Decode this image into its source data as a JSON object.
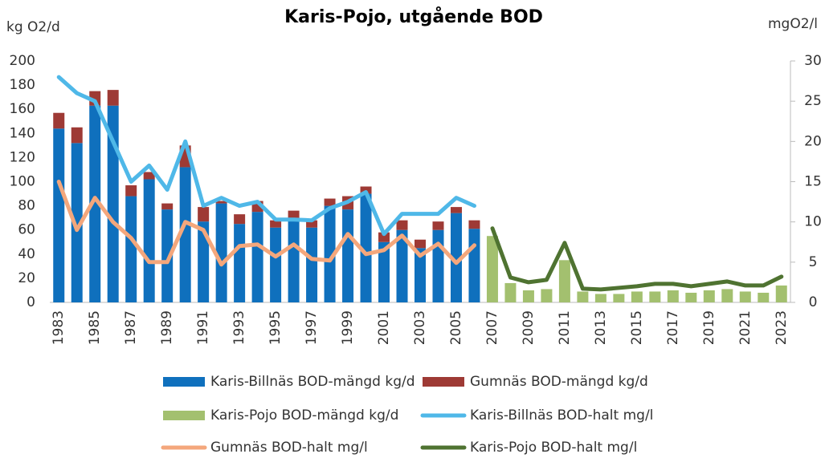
{
  "chart_data": {
    "type": "bar",
    "title": "Karis-Pojo, utgående BOD",
    "y_label": "kg O2/d",
    "y2_label": "mgO2/l",
    "categories": [
      "1983",
      null,
      "1985",
      null,
      "1987",
      null,
      "1989",
      null,
      "1991",
      null,
      "1993",
      null,
      "1995",
      null,
      "1997",
      null,
      "1999",
      null,
      "2001",
      null,
      "2003",
      null,
      "2005",
      null,
      "2007",
      null,
      "2009",
      null,
      "2011",
      null,
      "2013",
      null,
      "2015",
      null,
      "2017",
      null,
      "2019",
      null,
      "2021",
      null,
      "2023"
    ],
    "ylim": [
      0,
      200
    ],
    "yticks": [
      0,
      20,
      40,
      60,
      80,
      100,
      120,
      140,
      160,
      180,
      200
    ],
    "y2lim": [
      0,
      30
    ],
    "y2ticks": [
      0,
      5,
      10,
      15,
      20,
      25,
      30
    ],
    "legend": "bottom",
    "series": [
      {
        "name": "Karis-Billnäs BOD-mängd kg/d",
        "type": "bar",
        "stack": "a",
        "color": "#0f70bd",
        "values": [
          144,
          132,
          163,
          163,
          88,
          102,
          77,
          112,
          67,
          82,
          65,
          75,
          62,
          70,
          62,
          80,
          77,
          90,
          50,
          60,
          45,
          60,
          74,
          61,
          null,
          null,
          null,
          null,
          null,
          null,
          null,
          null,
          null,
          null,
          null,
          null,
          null,
          null,
          null,
          null,
          null
        ]
      },
      {
        "name": "Gumnäs BOD-mängd kg/d",
        "type": "bar",
        "stack": "a",
        "color": "#9e3a35",
        "values": [
          13,
          13,
          12,
          13,
          9,
          6,
          5,
          18,
          12,
          2,
          8,
          9,
          6,
          6,
          6,
          6,
          11,
          6,
          8,
          8,
          7,
          7,
          5,
          7,
          null,
          null,
          null,
          null,
          null,
          null,
          null,
          null,
          null,
          null,
          null,
          null,
          null,
          null,
          null,
          null,
          null
        ]
      },
      {
        "name": "Karis-Pojo BOD-mängd kg/d",
        "type": "bar",
        "stack": "a",
        "color": "#a3c06f",
        "values": [
          null,
          null,
          null,
          null,
          null,
          null,
          null,
          null,
          null,
          null,
          null,
          null,
          null,
          null,
          null,
          null,
          null,
          null,
          null,
          null,
          null,
          null,
          null,
          null,
          55,
          16,
          10,
          11,
          35,
          9,
          7,
          7,
          9,
          9,
          10,
          8,
          10,
          11,
          9,
          8,
          14
        ]
      },
      {
        "name": "Karis-Billnäs BOD-halt mg/l",
        "type": "line",
        "axis": "y2",
        "color": "#4fb8e8",
        "values": [
          28,
          26,
          25,
          20,
          15,
          17,
          14,
          20,
          12,
          13,
          12,
          12.5,
          10.3,
          10.3,
          10.2,
          11.7,
          12.5,
          13.7,
          8.5,
          11,
          11,
          11,
          13,
          12,
          null,
          null,
          null,
          null,
          null,
          null,
          null,
          null,
          null,
          null,
          null,
          null,
          null,
          null,
          null,
          null,
          null
        ]
      },
      {
        "name": "Gumnäs BOD-halt mg/l",
        "type": "line",
        "axis": "y2",
        "color": "#f4a77c",
        "values": [
          15,
          9,
          13,
          10,
          8,
          5,
          5,
          10,
          9,
          4.7,
          7,
          7.2,
          5.7,
          7.2,
          5.4,
          5.2,
          8.5,
          6,
          6.5,
          8.3,
          5.8,
          7.3,
          4.9,
          7.1,
          null,
          null,
          null,
          null,
          null,
          null,
          null,
          null,
          null,
          null,
          null,
          null,
          null,
          null,
          null,
          null,
          null
        ]
      },
      {
        "name": "Karis-Pojo BOD-halt mg/l",
        "type": "line",
        "axis": "y2",
        "color": "#4f7331",
        "values": [
          null,
          null,
          null,
          null,
          null,
          null,
          null,
          null,
          null,
          null,
          null,
          null,
          null,
          null,
          null,
          null,
          null,
          null,
          null,
          null,
          null,
          null,
          null,
          null,
          9.2,
          3.1,
          2.5,
          2.8,
          7.4,
          1.7,
          1.6,
          1.8,
          2,
          2.3,
          2.3,
          2,
          2.3,
          2.6,
          2.1,
          2.1,
          3.2
        ]
      }
    ]
  }
}
